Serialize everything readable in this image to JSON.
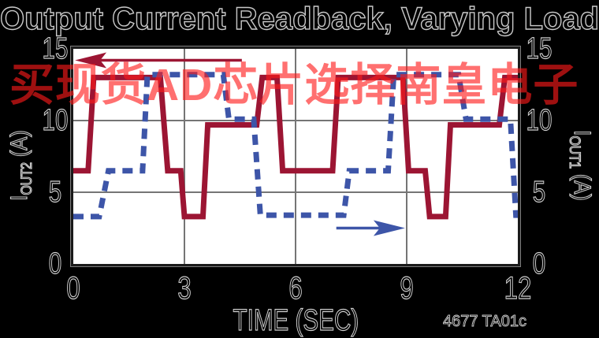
{
  "page": {
    "background": "#000000",
    "text_outline": "#d0d0d0"
  },
  "title": "Output Current Readback, Varying Load Pattern",
  "watermark": {
    "text": "买现货AD芯片选择南皇电子",
    "color": "#ff1a1a"
  },
  "footnote": "4677 TA01c",
  "chart_data": {
    "type": "line",
    "title": "Output Current Readback, Varying Load Pattern",
    "xlabel": "TIME (SEC)",
    "xlim": [
      0,
      12
    ],
    "x_ticks": [
      0,
      3,
      6,
      9,
      12
    ],
    "grid": true,
    "legend": "none",
    "left_axis": {
      "label": "IOUT2 (A)",
      "pre": "I",
      "sub": "OUT2",
      "post": " (A)",
      "lim": [
        0,
        15
      ],
      "ticks": [
        0,
        5,
        10,
        15
      ]
    },
    "right_axis": {
      "label": "IOUT1 (A)",
      "pre": "I",
      "sub": "OUT1",
      "post": " (A)",
      "lim": [
        0,
        15
      ],
      "ticks": [
        0,
        5,
        10,
        15
      ]
    },
    "series": [
      {
        "name": "IOUT2",
        "axis": "left",
        "style": "solid",
        "color": "#9c1533",
        "points": [
          [
            0,
            6.5
          ],
          [
            0.4,
            6.5
          ],
          [
            0.55,
            13
          ],
          [
            2.35,
            13
          ],
          [
            2.55,
            6.5
          ],
          [
            2.9,
            6.5
          ],
          [
            3.0,
            3.3
          ],
          [
            3.5,
            3.3
          ],
          [
            3.63,
            9.7
          ],
          [
            4.95,
            9.7
          ],
          [
            5.1,
            13
          ],
          [
            5.5,
            13
          ],
          [
            5.65,
            6.5
          ],
          [
            7.0,
            6.5
          ],
          [
            7.15,
            13
          ],
          [
            8.9,
            13
          ],
          [
            9.05,
            6.5
          ],
          [
            9.5,
            6.5
          ],
          [
            9.62,
            3.3
          ],
          [
            10.05,
            3.3
          ],
          [
            10.18,
            9.7
          ],
          [
            11.5,
            9.7
          ],
          [
            11.65,
            13
          ],
          [
            12,
            13
          ]
        ]
      },
      {
        "name": "IOUT1",
        "axis": "right",
        "style": "dashed",
        "color": "#3d55a8",
        "points": [
          [
            0,
            3.3
          ],
          [
            0.7,
            3.3
          ],
          [
            0.95,
            6.5
          ],
          [
            1.87,
            6.5
          ],
          [
            2.0,
            13.2
          ],
          [
            4.05,
            13.2
          ],
          [
            4.2,
            10.1
          ],
          [
            4.87,
            10.1
          ],
          [
            5.05,
            3.4
          ],
          [
            7.3,
            3.4
          ],
          [
            7.45,
            6.5
          ],
          [
            8.5,
            6.5
          ],
          [
            8.65,
            13.2
          ],
          [
            10.4,
            13.2
          ],
          [
            10.6,
            10.1
          ],
          [
            11.8,
            10.1
          ],
          [
            11.95,
            3.4
          ],
          [
            12,
            3.4
          ]
        ]
      }
    ],
    "annotations": [
      {
        "type": "arrow",
        "series": "IOUT2",
        "direction": "left",
        "color": "#9c1533",
        "t_start": 4.55,
        "t_end": 0.3,
        "value": 14.2
      },
      {
        "type": "arrow",
        "series": "IOUT1",
        "direction": "right",
        "color": "#3d55a8",
        "t_start": 7.1,
        "t_end": 8.7,
        "value": 2.5
      }
    ],
    "colors": {
      "grid": "#757575",
      "frame": "#1a1a1a",
      "plot_bg": "#ffffff"
    }
  }
}
